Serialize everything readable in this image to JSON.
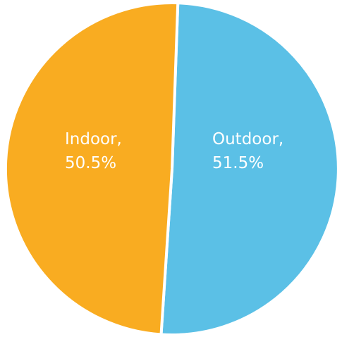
{
  "chart_data": {
    "type": "pie",
    "slices": [
      {
        "label": "Outdoor",
        "value": 51.5,
        "value_text": "51.5%",
        "color": "#5bc0e6"
      },
      {
        "label": "Indoor",
        "value": 50.5,
        "value_text": "50.5%",
        "color": "#f9ac21"
      }
    ],
    "data_labels": "inside",
    "legend": "none",
    "slice_border_color": "#ffffff"
  }
}
